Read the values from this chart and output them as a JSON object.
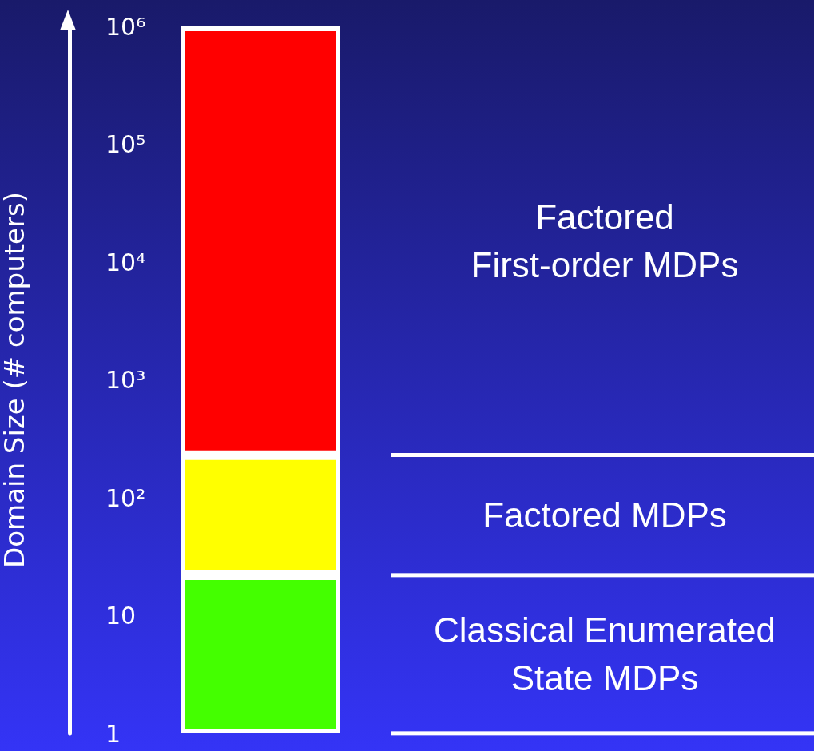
{
  "chart_data": {
    "type": "bar",
    "stacked": true,
    "log": true,
    "categories": [
      null
    ],
    "ylabel": "Domain Size (# computers)",
    "ylim": [
      1,
      1000000
    ],
    "yticks": [
      1,
      10,
      {
        "value": 100,
        "label": "10²"
      },
      {
        "value": 1000,
        "label": "10³"
      },
      {
        "value": 10000,
        "label": "10⁴"
      },
      {
        "value": 100000,
        "label": "10⁵"
      },
      {
        "value": 1000000,
        "label": "10⁶"
      }
    ],
    "series": [
      {
        "name": "Classical Enumerated\nState MDPs",
        "color": "#44ff00",
        "values": [
          22
        ]
      },
      {
        "name": "Factored MDPs",
        "color": "#ffff00",
        "values": [
          208
        ]
      },
      {
        "name": "Factored\nFirst-order MDPs",
        "color": "#ff0000",
        "values": [
          999770
        ]
      }
    ],
    "grid": false,
    "legend": false
  }
}
